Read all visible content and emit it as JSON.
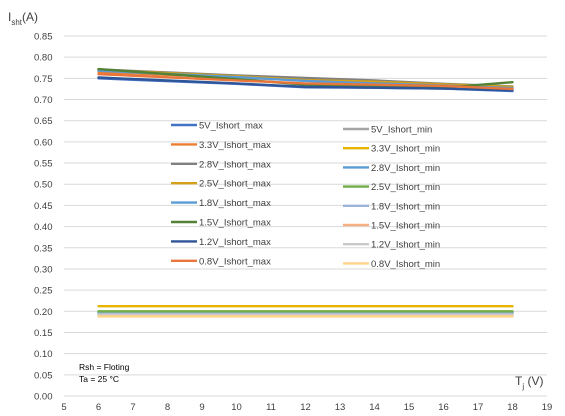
{
  "chart_data": {
    "type": "line",
    "ylabel_main": "I",
    "ylabel_sub": "sht",
    "ylabel_unit": "(A)",
    "xlabel_main": "T",
    "xlabel_sub": "j",
    "xlabel_unit": " (V)",
    "xlim": [
      5,
      19
    ],
    "ylim": [
      0.0,
      0.85
    ],
    "x_ticks": [
      "5",
      "6",
      "7",
      "8",
      "9",
      "10",
      "11",
      "12",
      "13",
      "14",
      "15",
      "16",
      "17",
      "18",
      "19"
    ],
    "y_ticks": [
      "0.00",
      "0.05",
      "0.10",
      "0.15",
      "0.20",
      "0.25",
      "0.30",
      "0.35",
      "0.40",
      "0.45",
      "0.50",
      "0.55",
      "0.60",
      "0.65",
      "0.70",
      "0.75",
      "0.80",
      "0.85"
    ],
    "grid": true,
    "legend_position": "center",
    "annotations": [
      "Rsh = Floting",
      "Ta = 25 °C"
    ],
    "x": [
      6,
      10,
      12,
      14,
      16,
      18
    ],
    "series": [
      {
        "name": "5V_Ishort_max",
        "color": "#4472C4",
        "values": [
          0.75,
          0.737,
          0.729,
          0.728,
          0.726,
          0.72
        ]
      },
      {
        "name": "3.3V_Ishort_max",
        "color": "#ED7D31",
        "values": [
          0.765,
          0.752,
          0.745,
          0.739,
          0.735,
          0.728
        ]
      },
      {
        "name": "2.8V_Ishort_max",
        "color": "#808080",
        "values": [
          0.771,
          0.757,
          0.751,
          0.745,
          0.737,
          0.731
        ]
      },
      {
        "name": "2.5V_Ishort_max",
        "color": "#D4A017",
        "values": [
          0.77,
          0.755,
          0.746,
          0.742,
          0.736,
          0.73
        ]
      },
      {
        "name": "1.8V_Ishort_max",
        "color": "#5B9BD5",
        "values": [
          0.768,
          0.753,
          0.744,
          0.738,
          0.733,
          0.727
        ]
      },
      {
        "name": "1.5V_Ishort_max",
        "color": "#548235",
        "values": [
          0.772,
          0.748,
          0.735,
          0.731,
          0.728,
          0.741
        ]
      },
      {
        "name": "1.2V_Ishort_max",
        "color": "#2E5597",
        "values": [
          0.752,
          0.738,
          0.73,
          0.728,
          0.726,
          0.722
        ]
      },
      {
        "name": "0.8V_Ishort_max",
        "color": "#E8753A",
        "values": [
          0.76,
          0.745,
          0.738,
          0.735,
          0.732,
          0.725
        ]
      },
      {
        "name": "5V_Ishort_min",
        "color": "#A5A5A5",
        "values": [
          0.198,
          0.198,
          0.198,
          0.198,
          0.198,
          0.198
        ]
      },
      {
        "name": "3.3V_Ishort_min",
        "color": "#E8B400",
        "values": [
          0.212,
          0.212,
          0.212,
          0.212,
          0.212,
          0.212
        ]
      },
      {
        "name": "2.8V_Ishort_min",
        "color": "#5B9BD5",
        "values": [
          0.196,
          0.196,
          0.196,
          0.196,
          0.196,
          0.196
        ]
      },
      {
        "name": "2.5V_Ishort_min",
        "color": "#70AD47",
        "values": [
          0.2,
          0.2,
          0.2,
          0.2,
          0.2,
          0.2
        ]
      },
      {
        "name": "1.8V_Ishort_min",
        "color": "#9DB3D9",
        "values": [
          0.194,
          0.194,
          0.194,
          0.194,
          0.194,
          0.194
        ]
      },
      {
        "name": "1.5V_Ishort_min",
        "color": "#F4B183",
        "values": [
          0.19,
          0.19,
          0.19,
          0.19,
          0.19,
          0.19
        ]
      },
      {
        "name": "1.2V_Ishort_min",
        "color": "#C9C9C9",
        "values": [
          0.192,
          0.192,
          0.192,
          0.192,
          0.192,
          0.192
        ]
      },
      {
        "name": "0.8V_Ishort_min",
        "color": "#FFD48A",
        "values": [
          0.188,
          0.188,
          0.188,
          0.188,
          0.188,
          0.188
        ]
      }
    ]
  }
}
